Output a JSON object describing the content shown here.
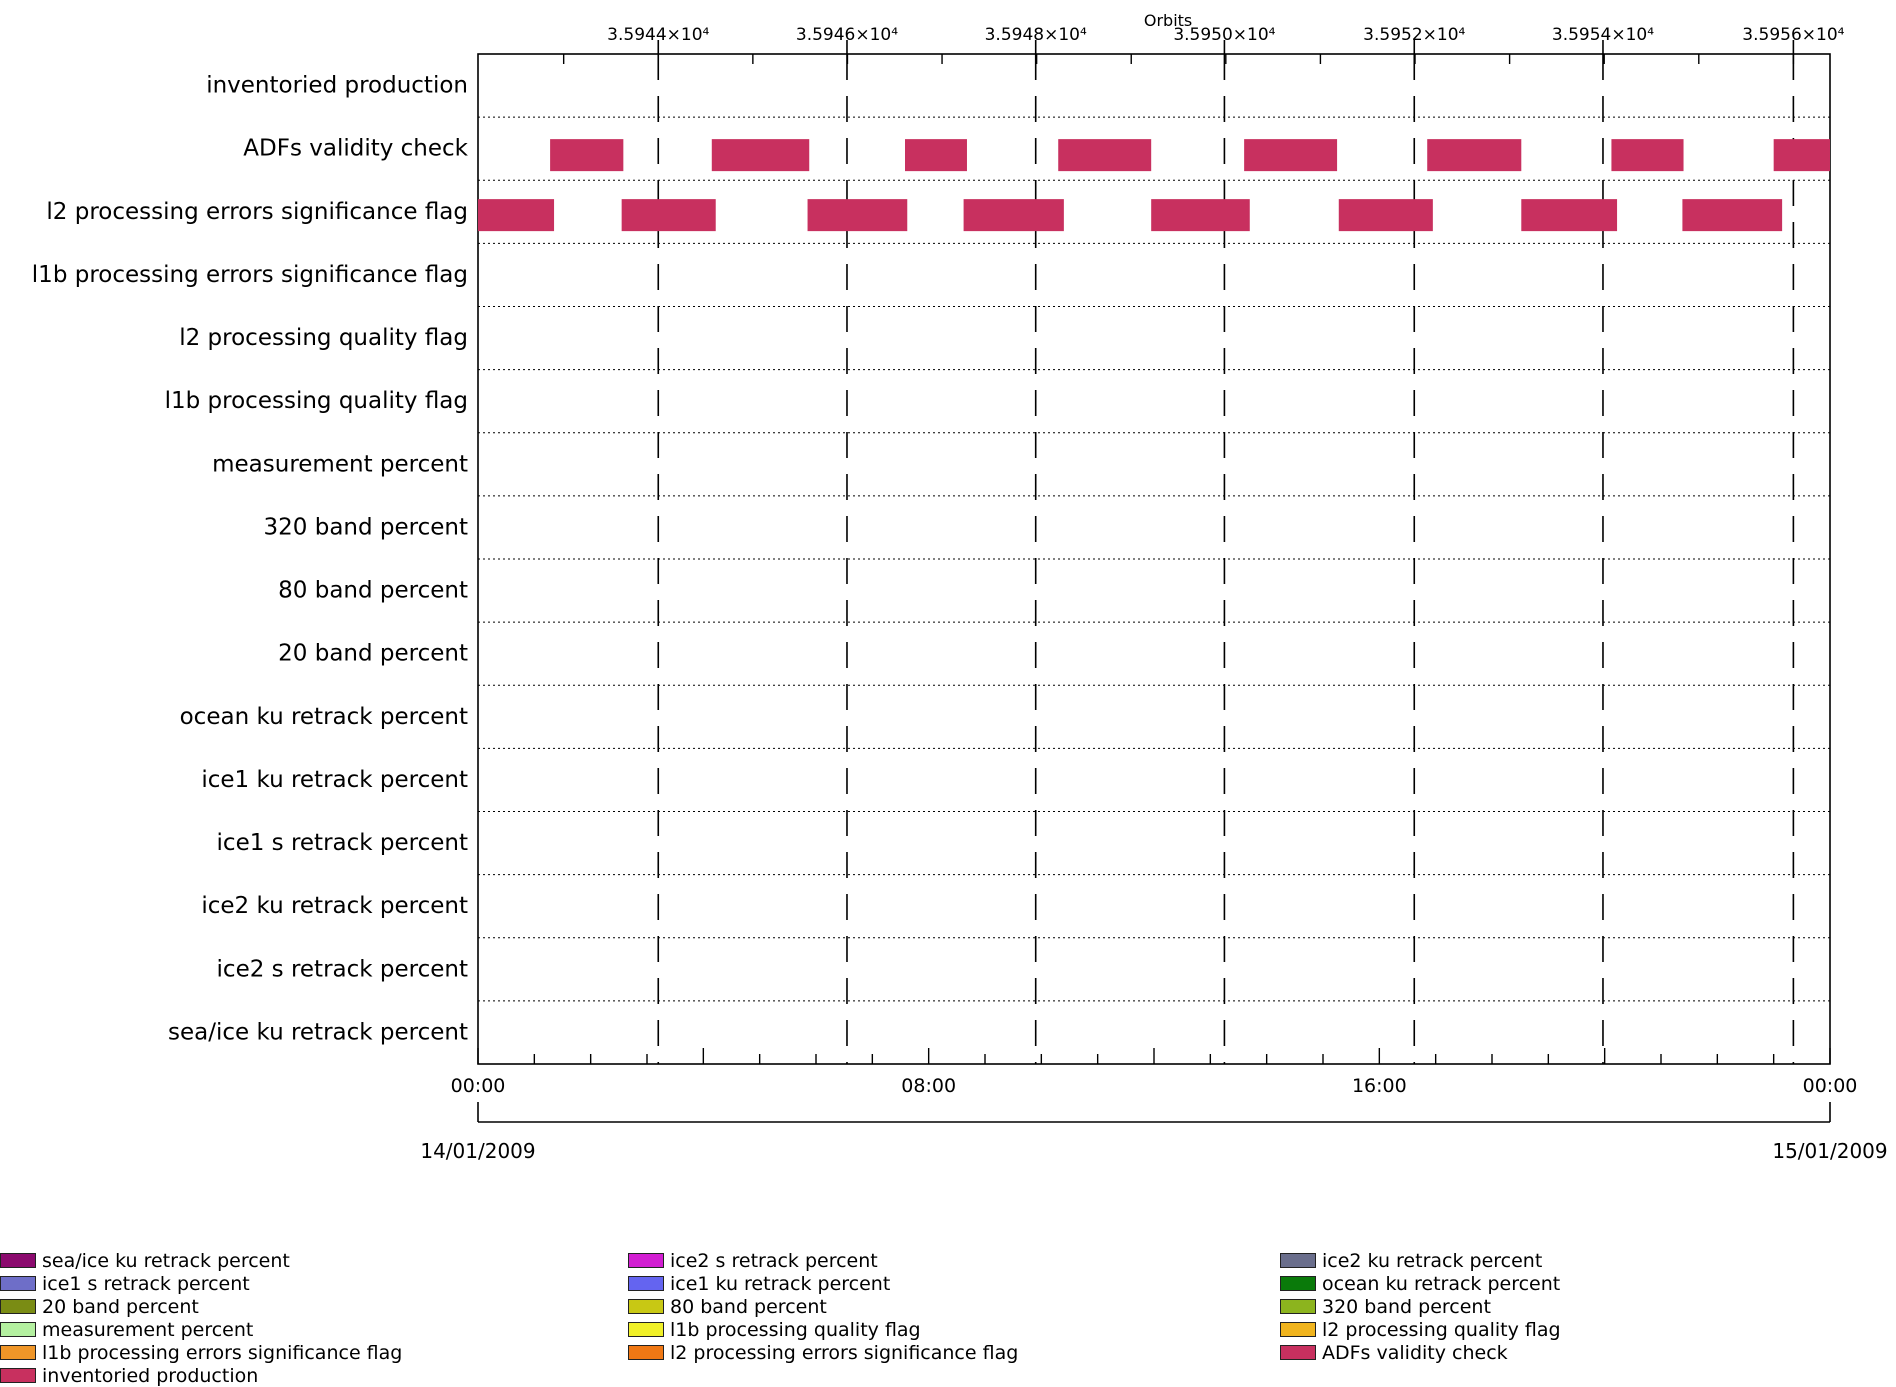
{
  "chart_data": {
    "type": "timeline",
    "top_axis_title": "Orbits",
    "orbit_ticks": [
      "3.5944×10⁴",
      "3.5946×10⁴",
      "3.5948×10⁴",
      "3.5950×10⁴",
      "3.5952×10⁴",
      "3.5954×10⁴",
      "3.5956×10⁴"
    ],
    "time_ticks": [
      "00:00",
      "08:00",
      "16:00",
      "00:00"
    ],
    "date_start": "14/01/2009",
    "date_end": "15/01/2009",
    "rows": [
      "inventoried production",
      "ADFs validity check",
      "l2 processing errors significance flag",
      "l1b processing errors significance flag",
      "l2 processing quality flag",
      "l1b processing quality flag",
      "measurement percent",
      "320 band percent",
      "80 band percent",
      "20 band percent",
      "ocean ku retrack percent",
      "ice1 ku retrack percent",
      "ice1 s retrack percent",
      "ice2 ku retrack percent",
      "ice2 s retrack percent",
      "sea/ice ku retrack percent"
    ],
    "series": [
      {
        "name": "ADFs validity check",
        "color": "#c8305f",
        "bars_upper_hours": [
          [
            1.28,
            2.58
          ],
          [
            4.15,
            5.88
          ],
          [
            7.58,
            8.68
          ],
          [
            10.3,
            11.95
          ],
          [
            13.6,
            15.25
          ],
          [
            16.85,
            18.52
          ],
          [
            20.12,
            21.4
          ],
          [
            23.0,
            24.0
          ]
        ],
        "bars_lower_hours": [
          [
            0.0,
            1.35
          ],
          [
            2.55,
            4.22
          ],
          [
            5.85,
            7.62
          ],
          [
            8.62,
            10.4
          ],
          [
            11.95,
            13.7
          ],
          [
            15.28,
            16.95
          ],
          [
            18.52,
            20.22
          ],
          [
            21.38,
            23.15
          ]
        ]
      }
    ],
    "orbit_marker_hours": [
      3.2,
      6.55,
      9.9,
      13.25,
      16.62,
      19.97,
      23.35
    ]
  },
  "legend": [
    {
      "label": "sea/ice ku retrack percent",
      "color": "#8b0a6e"
    },
    {
      "label": "ice2 s retrack percent",
      "color": "#d21ed2"
    },
    {
      "label": "ice2 ku retrack percent",
      "color": "#6a6e8c"
    },
    {
      "label": "ice1 s retrack percent",
      "color": "#6e6ec8"
    },
    {
      "label": "ice1 ku retrack percent",
      "color": "#6464f0"
    },
    {
      "label": "ocean ku retrack percent",
      "color": "#0a7a0a"
    },
    {
      "label": "20 band percent",
      "color": "#7a8c14"
    },
    {
      "label": "80 band percent",
      "color": "#c8c814"
    },
    {
      "label": "320 band percent",
      "color": "#8cb41e"
    },
    {
      "label": "measurement percent",
      "color": "#b4f0a0"
    },
    {
      "label": "l1b processing quality flag",
      "color": "#f0f028"
    },
    {
      "label": "l2 processing quality flag",
      "color": "#f0b41e"
    },
    {
      "label": "l1b processing errors significance flag",
      "color": "#f09628"
    },
    {
      "label": "l2 processing errors significance flag",
      "color": "#f07814"
    },
    {
      "label": "ADFs validity check",
      "color": "#c8305f"
    },
    {
      "label": "inventoried production",
      "color": "#c8305f"
    }
  ]
}
